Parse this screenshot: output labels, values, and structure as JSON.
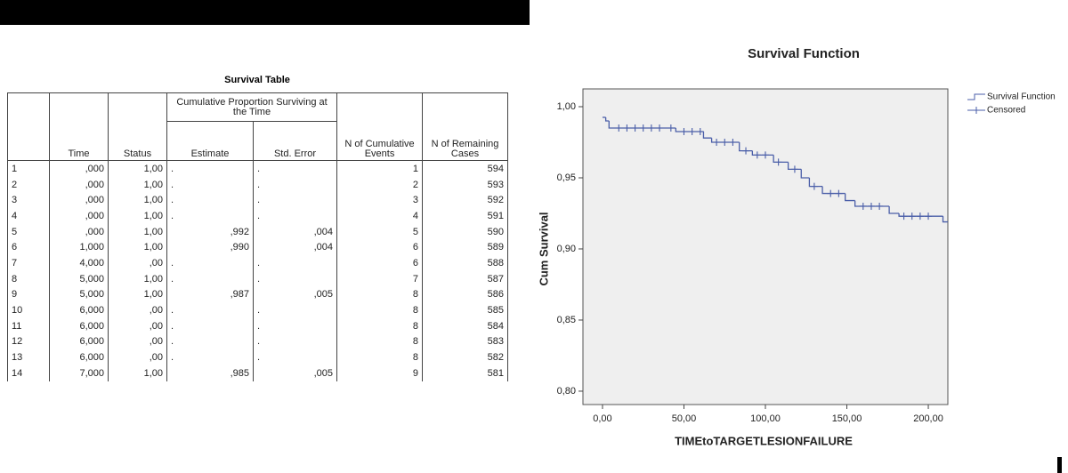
{
  "table": {
    "title": "Survival Table",
    "headers": {
      "time": "Time",
      "status": "Status",
      "group": "Cumulative Proportion Surviving at the Time",
      "estimate": "Estimate",
      "std_error": "Std. Error",
      "events": "N of Cumulative Events",
      "remaining": "N of Remaining Cases"
    },
    "rows": [
      [
        "1",
        ",000",
        "1,00",
        ".",
        ".",
        1,
        594
      ],
      [
        "2",
        ",000",
        "1,00",
        ".",
        ".",
        2,
        593
      ],
      [
        "3",
        ",000",
        "1,00",
        ".",
        ".",
        3,
        592
      ],
      [
        "4",
        ",000",
        "1,00",
        ".",
        ".",
        4,
        591
      ],
      [
        "5",
        ",000",
        "1,00",
        ",992",
        ",004",
        5,
        590
      ],
      [
        "6",
        "1,000",
        "1,00",
        ",990",
        ",004",
        6,
        589
      ],
      [
        "7",
        "4,000",
        ",00",
        ".",
        ".",
        6,
        588
      ],
      [
        "8",
        "5,000",
        "1,00",
        ".",
        ".",
        7,
        587
      ],
      [
        "9",
        "5,000",
        "1,00",
        ",987",
        ",005",
        8,
        586
      ],
      [
        "10",
        "6,000",
        ",00",
        ".",
        ".",
        8,
        585
      ],
      [
        "11",
        "6,000",
        ",00",
        ".",
        ".",
        8,
        584
      ],
      [
        "12",
        "6,000",
        ",00",
        ".",
        ".",
        8,
        583
      ],
      [
        "13",
        "6,000",
        ",00",
        ".",
        ".",
        8,
        582
      ],
      [
        "14",
        "7,000",
        "1,00",
        ",985",
        ",005",
        9,
        581
      ]
    ]
  },
  "chart_data": {
    "type": "step",
    "title": "Survival Function",
    "x_label": "TIMEtoTARGETLESIONFAILURE",
    "y_label": "Cum Survival",
    "xlim": [
      -12,
      212
    ],
    "ylim": [
      0.7906,
      1.0125
    ],
    "xticks": [
      {
        "value": 0,
        "label": "0,00"
      },
      {
        "value": 50,
        "label": "50,00"
      },
      {
        "value": 100,
        "label": "100,00"
      },
      {
        "value": 150,
        "label": "150,00"
      },
      {
        "value": 200,
        "label": "200,00"
      }
    ],
    "yticks": [
      {
        "value": 0.8,
        "label": "0,80"
      },
      {
        "value": 0.85,
        "label": "0,85"
      },
      {
        "value": 0.9,
        "label": "0,90"
      },
      {
        "value": 0.95,
        "label": "0,95"
      },
      {
        "value": 1.0,
        "label": "1,00"
      }
    ],
    "series": [
      {
        "name": "Survival Function",
        "color": "#4a5ea8",
        "x": [
          0,
          2,
          4,
          45,
          62,
          67,
          84,
          92,
          105,
          114,
          122,
          127,
          135,
          149,
          155,
          176,
          182,
          209
        ],
        "values": [
          0.9925,
          0.99,
          0.985,
          0.9825,
          0.978,
          0.975,
          0.969,
          0.966,
          0.961,
          0.956,
          0.95,
          0.944,
          0.939,
          0.934,
          0.93,
          0.925,
          0.923,
          0.919
        ]
      },
      {
        "name": "Censored",
        "color": "#4a5ea8",
        "x": [
          10,
          15,
          20,
          25,
          30,
          35,
          42,
          50,
          55,
          60,
          70,
          75,
          80,
          88,
          95,
          100,
          108,
          118,
          130,
          140,
          145,
          160,
          165,
          170,
          185,
          190,
          195,
          200
        ],
        "values": [
          0.985,
          0.985,
          0.985,
          0.985,
          0.985,
          0.985,
          0.985,
          0.9825,
          0.9825,
          0.9825,
          0.975,
          0.975,
          0.975,
          0.969,
          0.966,
          0.966,
          0.961,
          0.956,
          0.944,
          0.939,
          0.939,
          0.93,
          0.93,
          0.93,
          0.923,
          0.923,
          0.923,
          0.923
        ]
      }
    ],
    "legend": "top-right",
    "plot_background": "#efefef"
  }
}
